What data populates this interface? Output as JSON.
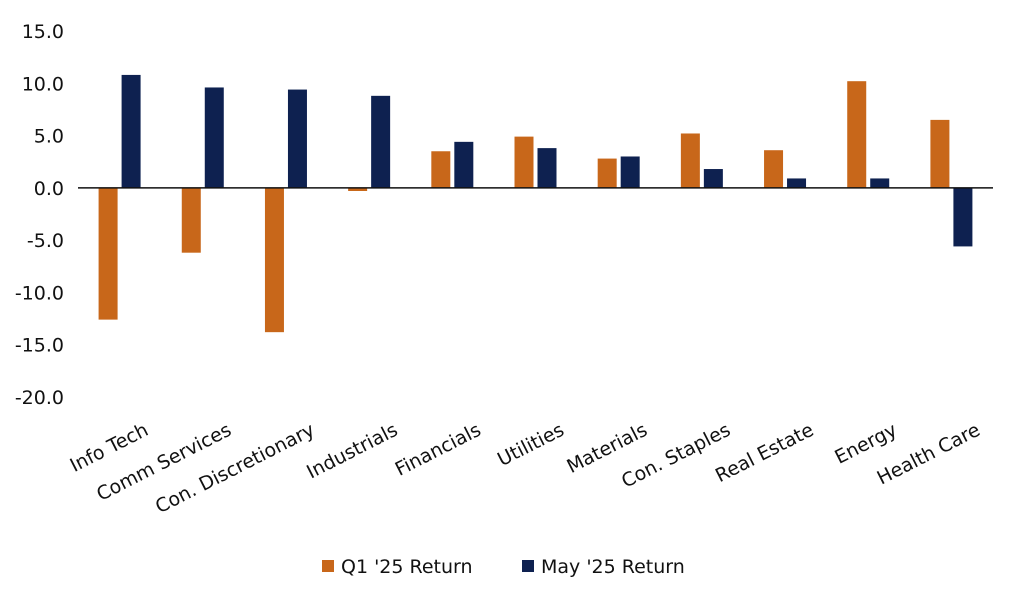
{
  "chart_data": {
    "type": "bar",
    "categories": [
      "Info Tech",
      "Comm Services",
      "Con. Discretionary",
      "Industrials",
      "Financials",
      "Utilities",
      "Materials",
      "Con. Staples",
      "Real Estate",
      "Energy",
      "Health Care"
    ],
    "series": [
      {
        "name": "Q1 '25 Return",
        "color": "#C8671A",
        "values": [
          -12.6,
          -6.2,
          -13.8,
          -0.3,
          3.5,
          4.9,
          2.8,
          5.2,
          3.6,
          10.2,
          6.5
        ]
      },
      {
        "name": "May '25 Return",
        "color": "#0E2150",
        "values": [
          10.8,
          9.6,
          9.4,
          8.8,
          4.4,
          3.8,
          3.0,
          1.8,
          0.9,
          0.9,
          -5.6
        ]
      }
    ],
    "ylim": [
      -20,
      15
    ],
    "yticks": [
      "15.0",
      "10.0",
      "5.0",
      "0.0",
      "-5.0",
      "-10.0",
      "-15.0",
      "-20.0"
    ],
    "ytick_values": [
      15,
      10,
      5,
      0,
      -5,
      -10,
      -15,
      -20
    ],
    "legend_position": "bottom",
    "grid": false,
    "title": "",
    "xlabel": "",
    "ylabel": ""
  }
}
